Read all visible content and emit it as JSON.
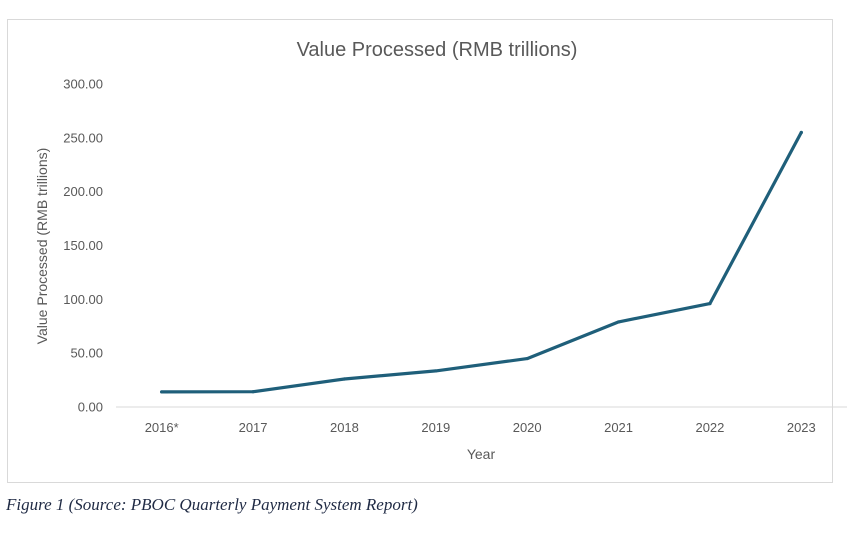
{
  "chart_data": {
    "type": "line",
    "title": "Value Processed (RMB trillions)",
    "xlabel": "Year",
    "ylabel": "Value Processed (RMB trillions)",
    "categories": [
      "2016*",
      "2017",
      "2018",
      "2019",
      "2020",
      "2021",
      "2022",
      "2023"
    ],
    "series": [
      {
        "values": [
          14.0,
          14.2,
          26.0,
          33.5,
          45.0,
          79.0,
          96.0,
          255.0
        ],
        "color": "#1f5f7a"
      }
    ],
    "ylim": [
      0,
      300
    ],
    "yticks": [
      "0.00",
      "50.00",
      "100.00",
      "150.00",
      "200.00",
      "250.00",
      "300.00"
    ],
    "grid": false,
    "legend": "none"
  },
  "caption": "Figure 1 (Source: PBOC Quarterly Payment System Report)"
}
